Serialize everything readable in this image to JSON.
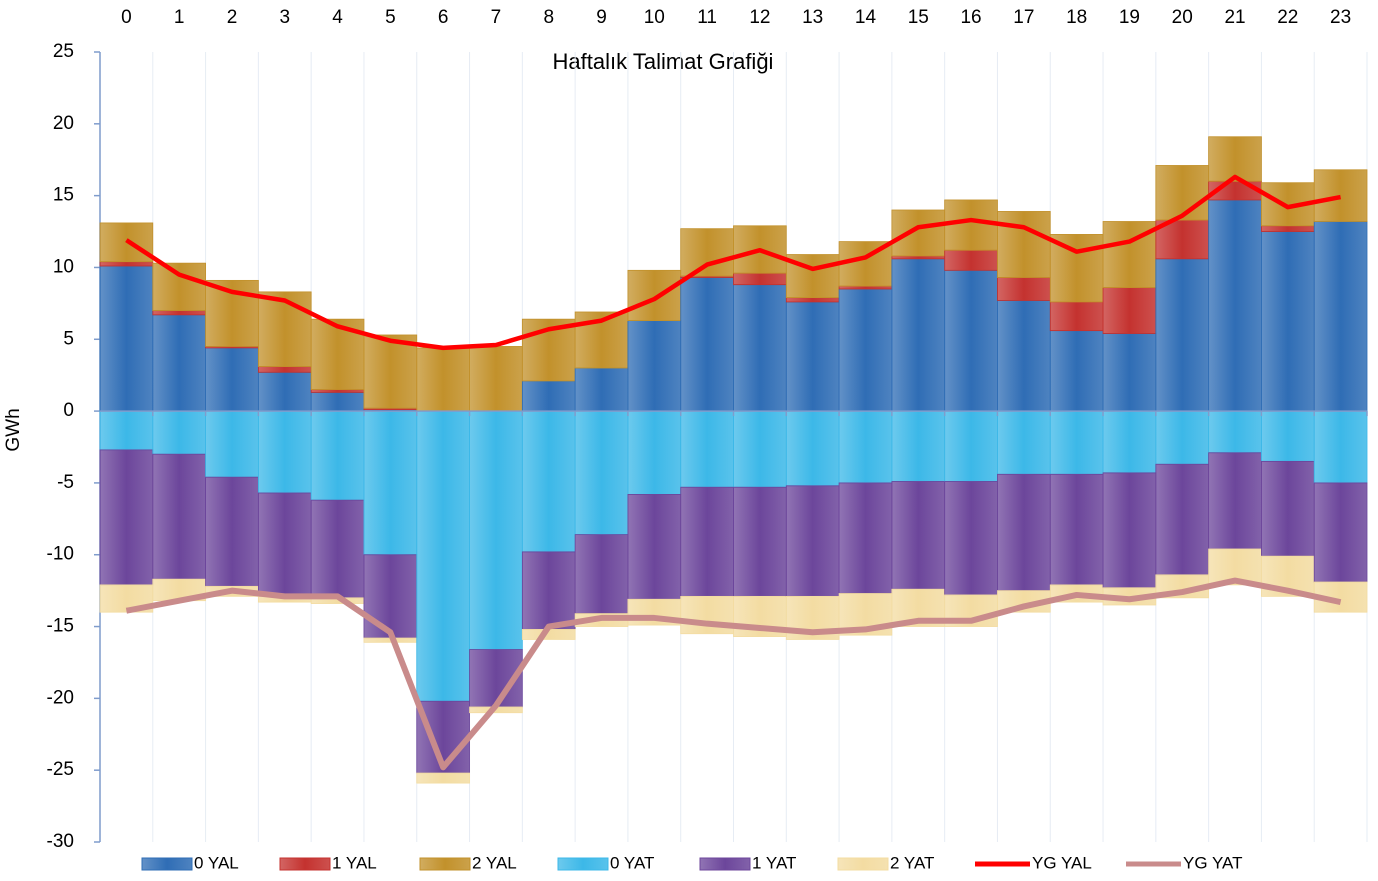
{
  "chart_data": {
    "type": "bar",
    "stacked": true,
    "title": "Haftalık Talimat Grafiği",
    "y_label": "GWh",
    "categories": [
      "0",
      "1",
      "2",
      "3",
      "4",
      "5",
      "6",
      "7",
      "8",
      "9",
      "10",
      "11",
      "12",
      "13",
      "14",
      "15",
      "16",
      "17",
      "18",
      "19",
      "20",
      "21",
      "22",
      "23"
    ],
    "ylim": [
      -30,
      25
    ],
    "yticks": [
      -30,
      -25,
      -20,
      -15,
      -10,
      -5,
      0,
      5,
      10,
      15,
      20,
      25
    ],
    "grid": false,
    "legend": "bottom",
    "series": [
      {
        "name": "0 YAL",
        "color": "#2f6db5",
        "values": [
          10.1,
          6.7,
          4.4,
          2.7,
          1.3,
          0.1,
          0,
          0,
          2.1,
          3.0,
          6.3,
          9.3,
          8.8,
          7.6,
          8.5,
          10.6,
          9.8,
          7.7,
          5.6,
          5.4,
          10.6,
          14.7,
          12.5,
          13.2
        ]
      },
      {
        "name": "1 YAL",
        "color": "#c4322f",
        "values": [
          0.3,
          0.3,
          0.1,
          0.4,
          0.2,
          0.1,
          0,
          0,
          0,
          0,
          0,
          0.1,
          0.8,
          0.3,
          0.2,
          0.2,
          1.4,
          1.6,
          2.0,
          3.2,
          2.7,
          1.3,
          0.4,
          0
        ]
      },
      {
        "name": "2 YAL",
        "color": "#c2912b",
        "values": [
          2.7,
          3.3,
          4.6,
          5.2,
          4.9,
          5.1,
          4.4,
          4.5,
          4.3,
          3.9,
          3.5,
          3.3,
          3.3,
          3.0,
          3.1,
          3.2,
          3.5,
          4.6,
          4.7,
          4.6,
          3.8,
          3.1,
          3.0,
          3.6
        ]
      },
      {
        "name": "0 YAT",
        "color": "#3cb8e8",
        "values": [
          -2.7,
          -3.0,
          -4.6,
          -5.7,
          -6.2,
          -10.0,
          -20.2,
          -16.6,
          -9.8,
          -8.6,
          -5.8,
          -5.3,
          -5.3,
          -5.2,
          -5.0,
          -4.9,
          -4.9,
          -4.4,
          -4.4,
          -4.3,
          -3.7,
          -2.9,
          -3.5,
          -5.0
        ]
      },
      {
        "name": "1 YAT",
        "color": "#6c469b",
        "values": [
          -9.4,
          -8.7,
          -7.6,
          -7.2,
          -6.8,
          -5.8,
          -5.0,
          -4.0,
          -5.4,
          -5.5,
          -7.3,
          -7.6,
          -7.6,
          -7.7,
          -7.7,
          -7.5,
          -7.9,
          -8.1,
          -7.7,
          -8.0,
          -7.7,
          -6.7,
          -6.6,
          -6.9
        ]
      },
      {
        "name": "2 YAT",
        "color": "#f3dca2",
        "values": [
          -1.9,
          -1.5,
          -0.7,
          -0.4,
          -0.4,
          -0.3,
          -0.7,
          -0.4,
          -0.7,
          -0.9,
          -1.8,
          -2.6,
          -2.8,
          -3.0,
          -2.9,
          -2.6,
          -2.2,
          -1.5,
          -1.2,
          -1.2,
          -1.6,
          -2.5,
          -2.8,
          -2.1
        ]
      },
      {
        "name": "YG YAL",
        "type": "line",
        "color": "#ff0000",
        "values": [
          11.9,
          9.5,
          8.3,
          7.7,
          5.9,
          4.9,
          4.4,
          4.6,
          5.7,
          6.3,
          7.8,
          10.2,
          11.2,
          9.9,
          10.7,
          12.8,
          13.3,
          12.8,
          11.1,
          11.8,
          13.6,
          16.3,
          14.2,
          14.9
        ]
      },
      {
        "name": "YG YAT",
        "type": "line",
        "color": "#c98b8b",
        "values": [
          -13.9,
          -13.2,
          -12.5,
          -12.9,
          -12.9,
          -15.4,
          -24.8,
          -20.5,
          -15.0,
          -14.4,
          -14.4,
          -14.8,
          -15.1,
          -15.4,
          -15.2,
          -14.6,
          -14.6,
          -13.6,
          -12.8,
          -13.1,
          -12.6,
          -11.8,
          -12.5,
          -13.3
        ]
      }
    ]
  }
}
